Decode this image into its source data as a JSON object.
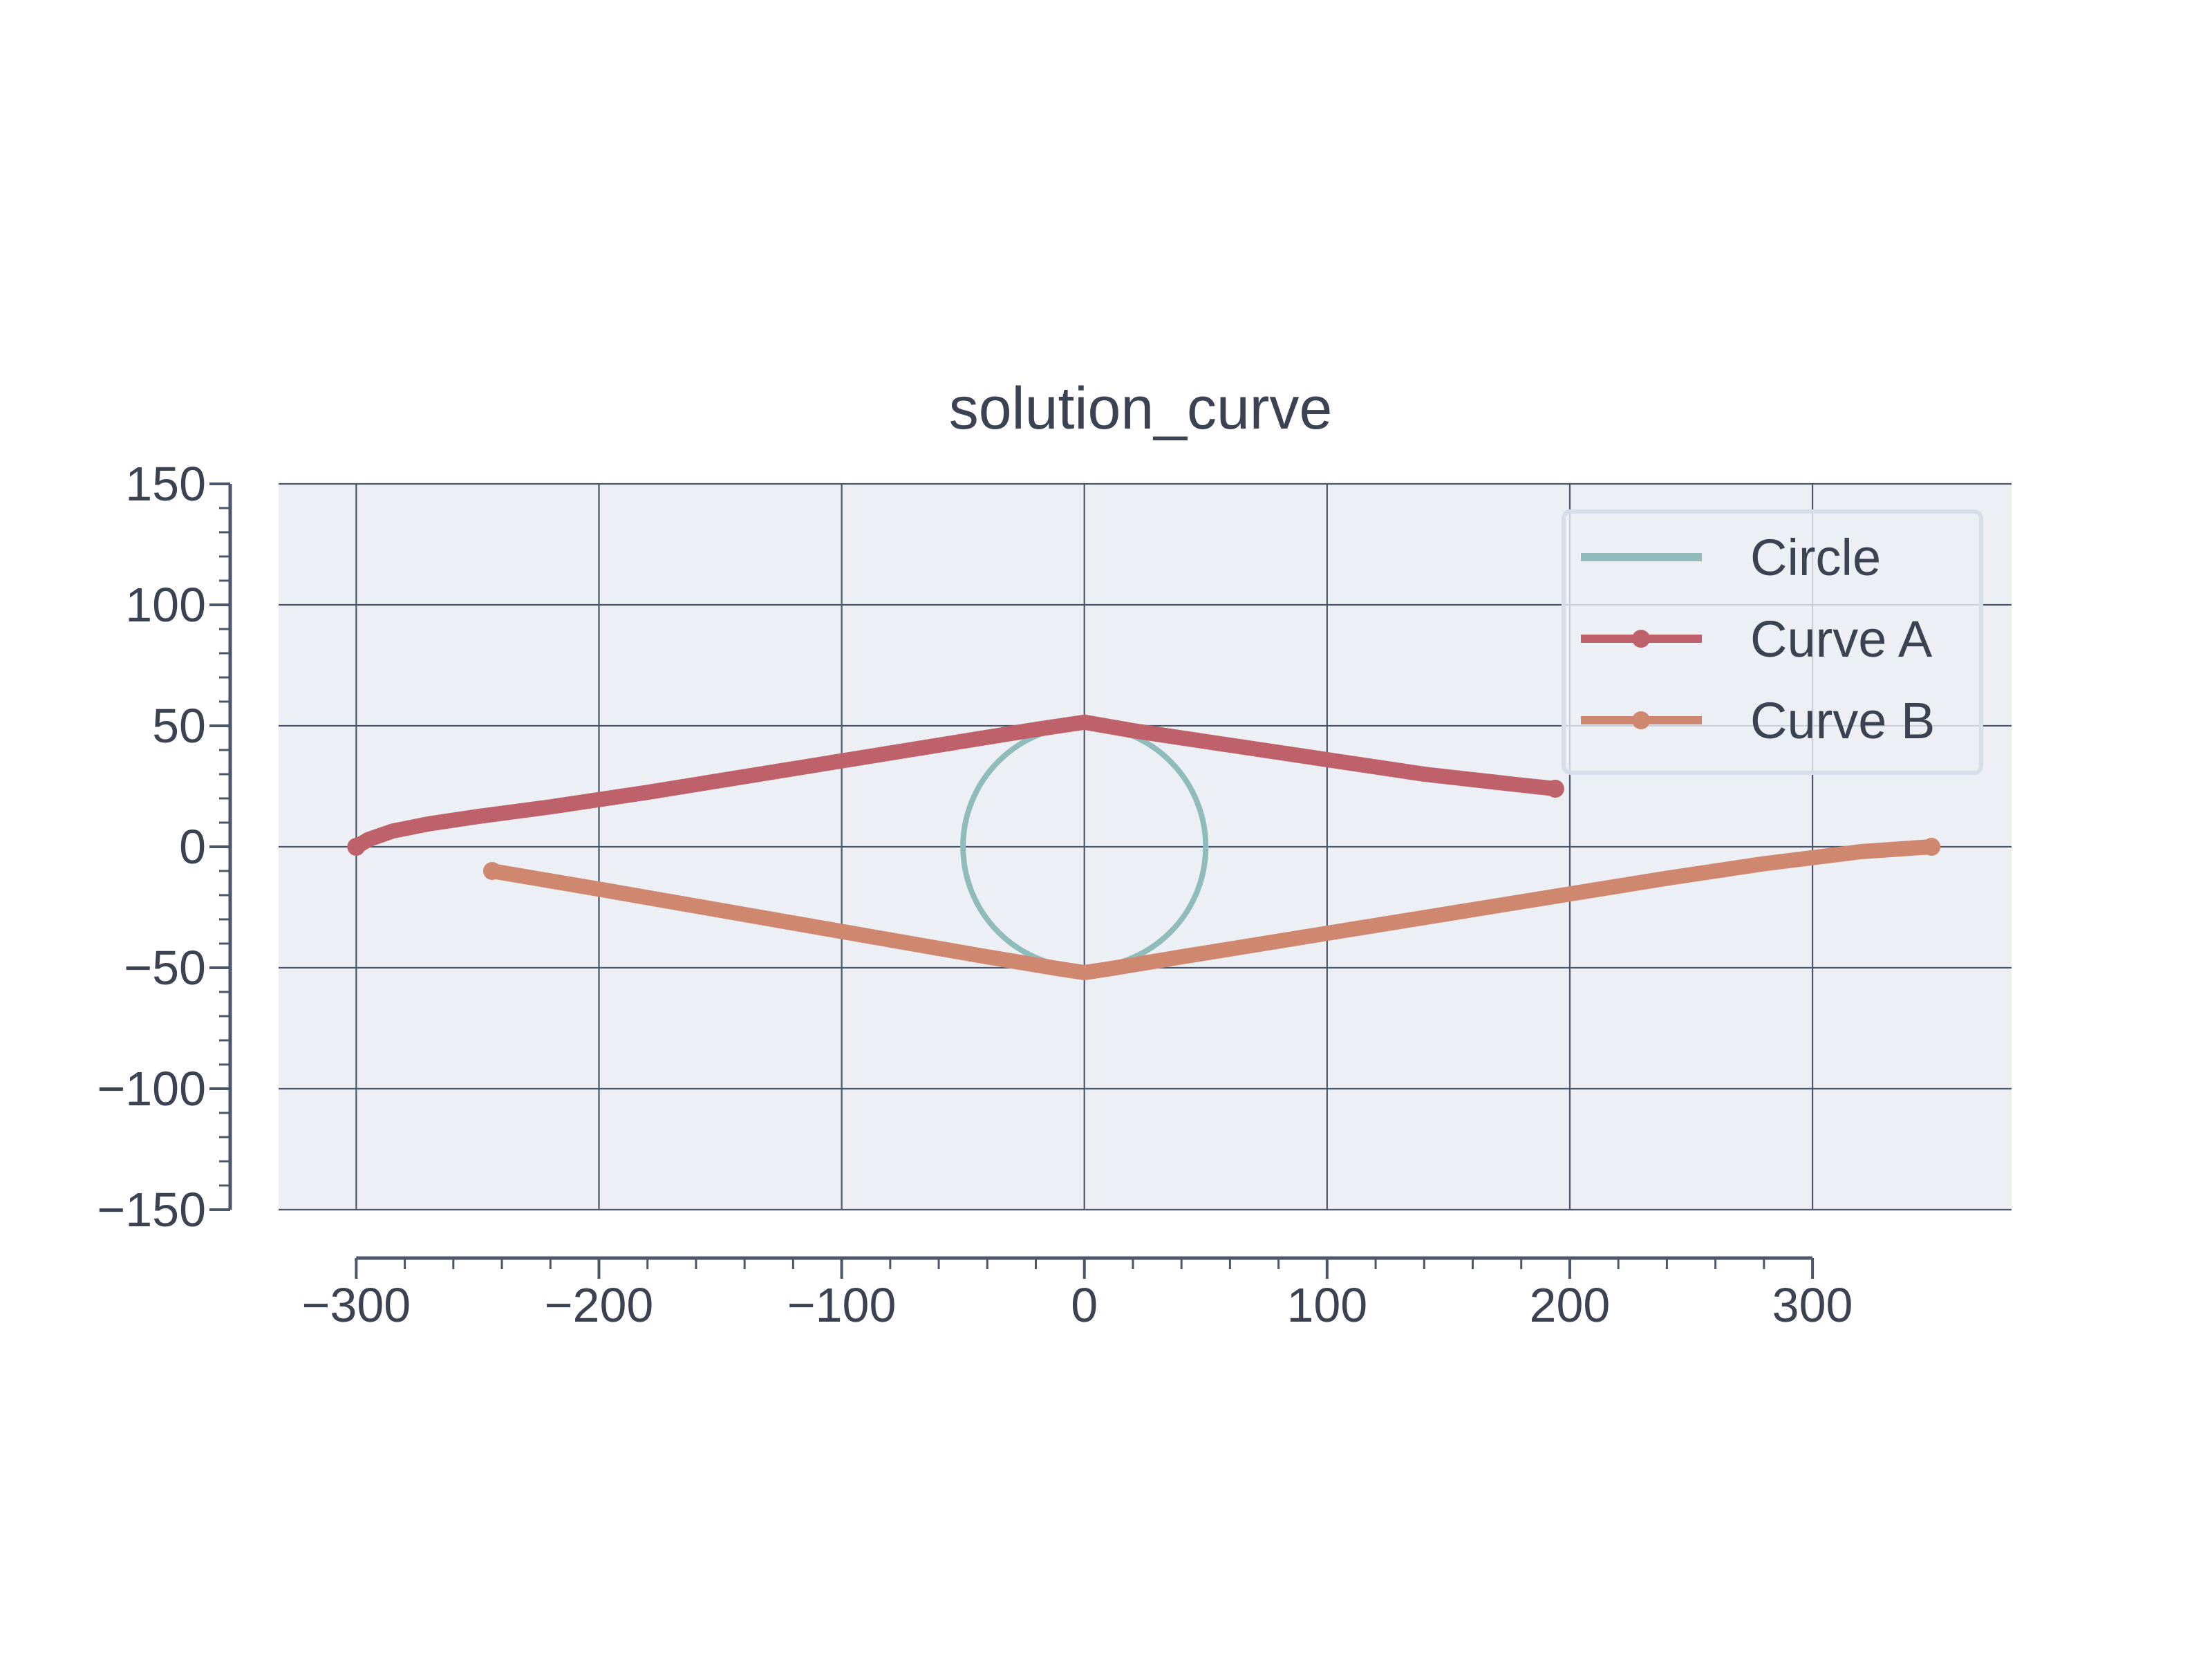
{
  "chart_data": {
    "type": "line",
    "title": "solution_curve",
    "xlabel": "",
    "ylabel": "",
    "xlim": [
      -332,
      382
    ],
    "ylim": [
      -150,
      150
    ],
    "x_ticks": [
      -300,
      -200,
      -100,
      0,
      100,
      200,
      300
    ],
    "y_ticks": [
      -150,
      -100,
      -50,
      0,
      50,
      100,
      150
    ],
    "x_tick_labels": [
      "−300",
      "−200",
      "−100",
      "0",
      "100",
      "200",
      "300"
    ],
    "y_tick_labels": [
      "−150",
      "−100",
      "−50",
      "0",
      "50",
      "100",
      "150"
    ],
    "grid": true,
    "legend_position": "upper right",
    "series": [
      {
        "name": "Circle",
        "color": "#8fbcbb",
        "marker": "none",
        "center": [
          0,
          0
        ],
        "radius": 50
      },
      {
        "name": "Curve A",
        "color": "#bf616a",
        "marker": "circle",
        "x": [
          -300,
          -295,
          -285,
          -270,
          -250,
          -220,
          -180,
          -140,
          -100,
          -60,
          -20,
          0,
          20,
          60,
          100,
          140,
          180,
          194
        ],
        "y": [
          0,
          3,
          6.5,
          9.5,
          12.5,
          16.5,
          22.5,
          29,
          35.5,
          42,
          48.5,
          51.5,
          48,
          42,
          36,
          30,
          25.5,
          24
        ]
      },
      {
        "name": "Curve B",
        "color": "#d08770",
        "marker": "circle",
        "x": [
          -244,
          -200,
          -160,
          -120,
          -80,
          -40,
          -10,
          0,
          10,
          40,
          80,
          120,
          160,
          200,
          240,
          280,
          320,
          349
        ],
        "y": [
          -10,
          -17.5,
          -24.5,
          -31.5,
          -38.5,
          -45.5,
          -50.5,
          -52,
          -50.5,
          -45.5,
          -39,
          -32.5,
          -26,
          -19.5,
          -13,
          -7,
          -2,
          0
        ]
      }
    ]
  },
  "colors": {
    "plot_background": "#eceff4",
    "grid": "#4c566a",
    "axis": "#4c566a",
    "text": "#3b4252",
    "legend_border": "#d8dee9"
  }
}
